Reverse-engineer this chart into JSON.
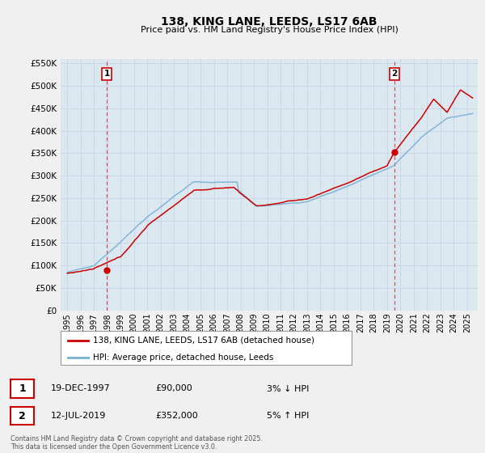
{
  "title": "138, KING LANE, LEEDS, LS17 6AB",
  "subtitle": "Price paid vs. HM Land Registry's House Price Index (HPI)",
  "legend_line1": "138, KING LANE, LEEDS, LS17 6AB (detached house)",
  "legend_line2": "HPI: Average price, detached house, Leeds",
  "annotation1_label": "1",
  "annotation1_date": "19-DEC-1997",
  "annotation1_price": "£90,000",
  "annotation1_hpi": "3% ↓ HPI",
  "annotation2_label": "2",
  "annotation2_date": "12-JUL-2019",
  "annotation2_price": "£352,000",
  "annotation2_hpi": "5% ↑ HPI",
  "footer": "Contains HM Land Registry data © Crown copyright and database right 2025.\nThis data is licensed under the Open Government Licence v3.0.",
  "sale1_year": 1997.96,
  "sale1_price": 90000,
  "sale2_year": 2019.54,
  "sale2_price": 352000,
  "red_line_color": "#cc0000",
  "blue_line_color": "#7ab0d4",
  "dashed_line_color": "#cc0000",
  "grid_color": "#c8d8e8",
  "background_color": "#f0f0f0",
  "plot_bg_color": "#dce8f0",
  "ylim_min": 0,
  "ylim_max": 560000,
  "yticks": [
    0,
    50000,
    100000,
    150000,
    200000,
    250000,
    300000,
    350000,
    400000,
    450000,
    500000,
    550000
  ],
  "xmin": 1994.5,
  "xmax": 2025.8
}
